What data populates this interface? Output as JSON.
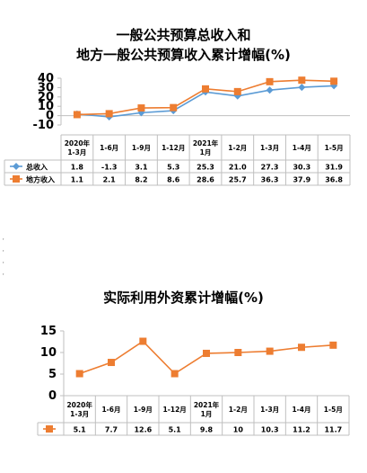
{
  "chart_data": [
    {
      "type": "line",
      "title": "一般公共预算总收入和\n地方一般公共预算收入累计增幅(%)",
      "categories": [
        "2020年\n1-3月",
        "1-6月",
        "1-9月",
        "1-12月",
        "2021年\n1月",
        "1-2月",
        "1-3月",
        "1-4月",
        "1-5月"
      ],
      "series": [
        {
          "name": "总收入",
          "values": [
            1.8,
            -1.3,
            3.1,
            5.3,
            25.3,
            21.0,
            27.3,
            30.3,
            31.9
          ],
          "labels": [
            "1.8",
            "-1.3",
            "3.1",
            "5.3",
            "25.3",
            "21.0",
            "27.3",
            "30.3",
            "31.9"
          ],
          "color": "#5b9bd5",
          "marker": "diamond"
        },
        {
          "name": "地方收入",
          "values": [
            1.1,
            2.1,
            8.2,
            8.6,
            28.6,
            25.7,
            36.3,
            37.9,
            36.8
          ],
          "labels": [
            "1.1",
            "2.1",
            "8.2",
            "8.6",
            "28.6",
            "25.7",
            "36.3",
            "37.9",
            "36.8"
          ],
          "color": "#ed7d31",
          "marker": "square"
        }
      ],
      "ylim": [
        -10,
        40
      ],
      "yticks": [
        -10,
        0,
        10,
        20,
        30,
        40
      ],
      "grid": false,
      "legend": "data-table"
    },
    {
      "type": "line",
      "title": "实际利用外资累计增幅(%)",
      "categories": [
        "2020年\n1-3月",
        "1-6月",
        "1-9月",
        "1-12月",
        "2021年\n1月",
        "1-2月",
        "1-3月",
        "1-4月",
        "1-5月"
      ],
      "series": [
        {
          "name": "",
          "values": [
            5.1,
            7.7,
            12.6,
            5.1,
            9.8,
            10,
            10.3,
            11.2,
            11.7
          ],
          "labels": [
            "5.1",
            "7.7",
            "12.6",
            "5.1",
            "9.8",
            "10",
            "10.3",
            "11.2",
            "11.7"
          ],
          "color": "#ed7d31",
          "marker": "square"
        }
      ],
      "ylim": [
        0,
        15
      ],
      "yticks": [
        0,
        5,
        10,
        15
      ],
      "grid": false,
      "legend": "data-table"
    }
  ],
  "marks": [
    "'",
    "'",
    "'",
    "'"
  ]
}
